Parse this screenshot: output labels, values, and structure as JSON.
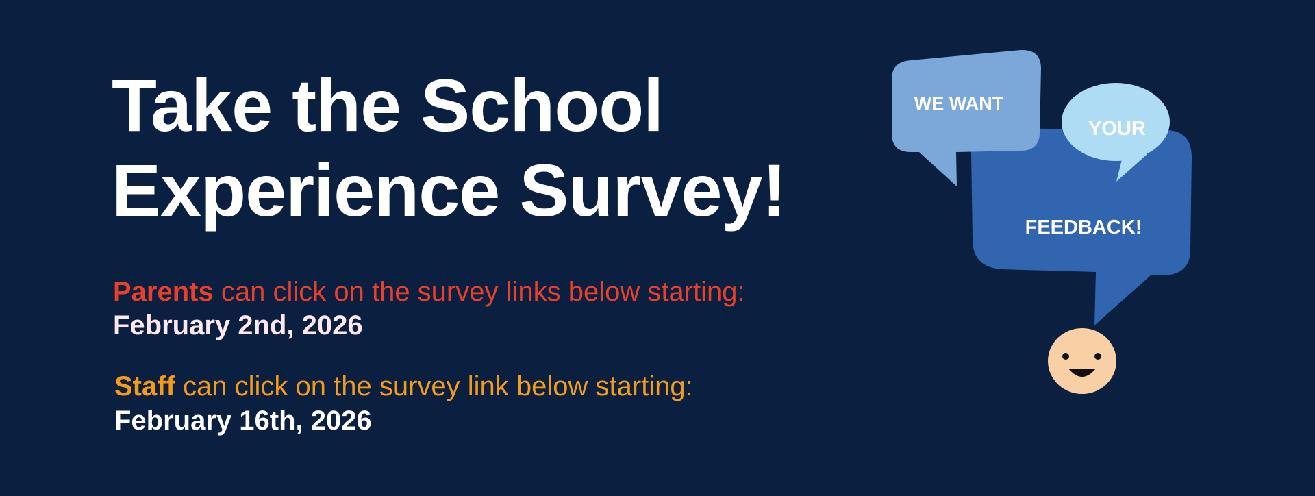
{
  "title": {
    "line1": "Take the School",
    "line2": "Experience Survey!"
  },
  "parents": {
    "lead": "Parents",
    "text": " can click on the survey links below starting:",
    "date": "February 2nd, 2026"
  },
  "staff": {
    "lead": "Staff",
    "text": " can click on the survey link below starting:",
    "date": "February 16th, 2026"
  },
  "graphic": {
    "bubble1": "WE WANT",
    "bubble2": "YOUR",
    "bubble3": "FEEDBACK!",
    "icon": "smiley-face-icon"
  },
  "colors": {
    "background": "#0b1f40",
    "parents_accent": "#e8402a",
    "staff_accent": "#f49b1c",
    "bubble_light": "#7ba7d9",
    "bubble_dark": "#3165b0",
    "bubble_pale": "#afdcf5",
    "face": "#f9cfa5"
  }
}
